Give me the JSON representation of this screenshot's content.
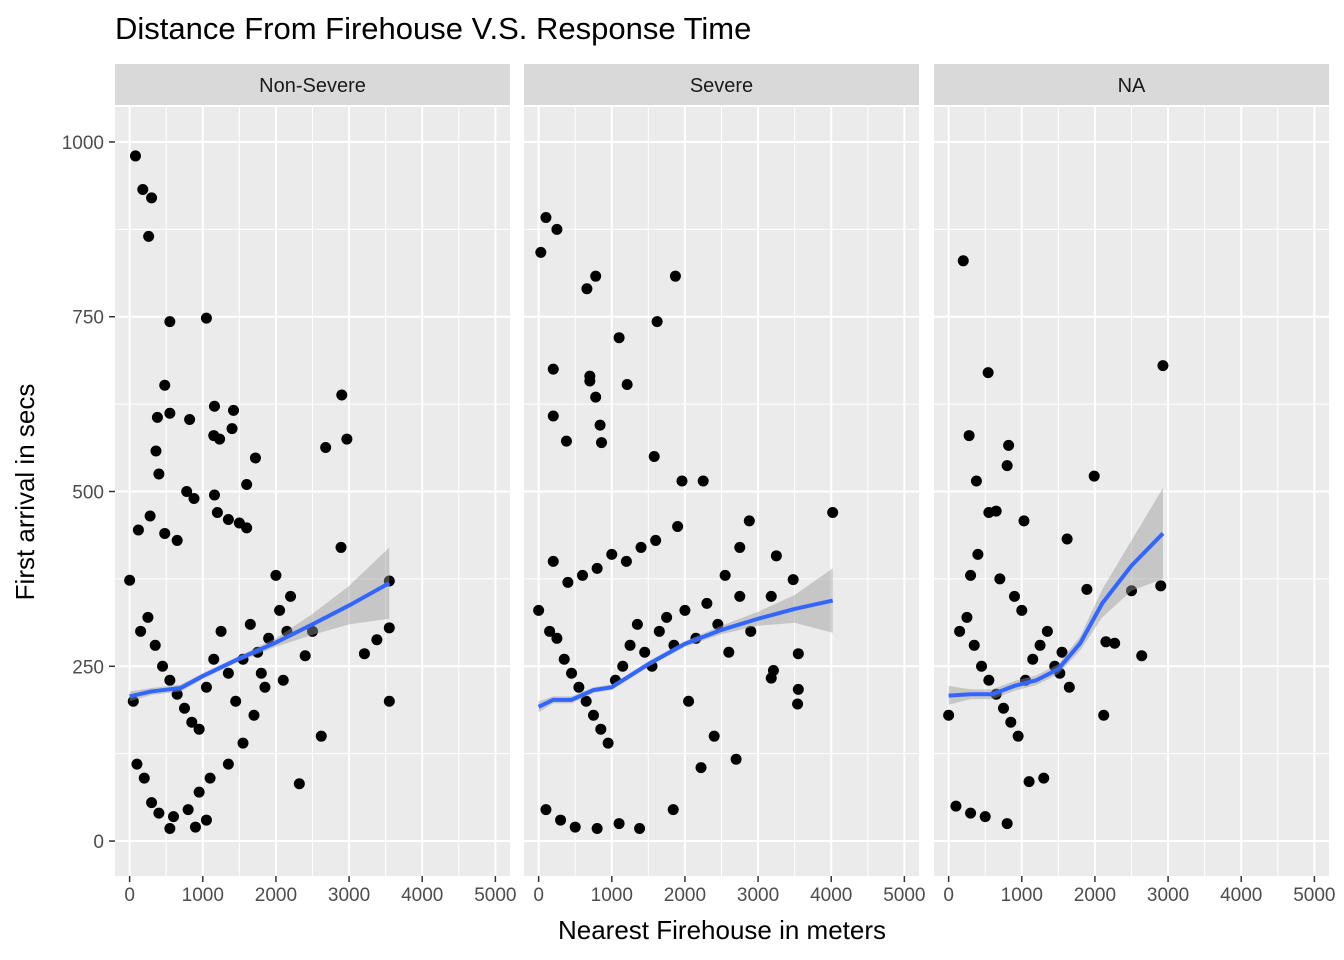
{
  "chart_data": {
    "type": "scatter",
    "title": "Distance From Firehouse V.S. Response Time",
    "xlabel": "Nearest Firehouse in meters",
    "ylabel": "First arrival in secs",
    "xlim": [
      -200,
      5200
    ],
    "ylim": [
      -50,
      1050
    ],
    "x_ticks": [
      0,
      1000,
      2000,
      3000,
      4000,
      5000
    ],
    "x_tick_labels": [
      "0",
      "1000",
      "2000",
      "3000",
      "4000",
      "5000"
    ],
    "y_ticks": [
      0,
      250,
      500,
      750,
      1000
    ],
    "y_tick_labels": [
      "0",
      "250",
      "500",
      "750",
      "1000"
    ],
    "grid": true,
    "colors": {
      "panel_bg": "#ebebeb",
      "strip_bg": "#d9d9d9",
      "grid": "#ffffff",
      "point": "#000000",
      "smooth_line": "#3366ff",
      "ribbon": "#999999"
    },
    "panels": [
      {
        "label": "Non-Severe",
        "points": [
          [
            80,
            980
          ],
          [
            180,
            932
          ],
          [
            300,
            920
          ],
          [
            260,
            865
          ],
          [
            550,
            743
          ],
          [
            1050,
            748
          ],
          [
            480,
            652
          ],
          [
            1160,
            622
          ],
          [
            1420,
            616
          ],
          [
            550,
            612
          ],
          [
            380,
            606
          ],
          [
            820,
            603
          ],
          [
            1400,
            590
          ],
          [
            1150,
            580
          ],
          [
            1230,
            575
          ],
          [
            360,
            558
          ],
          [
            1720,
            548
          ],
          [
            400,
            525
          ],
          [
            1600,
            510
          ],
          [
            780,
            500
          ],
          [
            1160,
            495
          ],
          [
            880,
            490
          ],
          [
            280,
            465
          ],
          [
            1200,
            470
          ],
          [
            1350,
            460
          ],
          [
            1500,
            455
          ],
          [
            1600,
            448
          ],
          [
            120,
            445
          ],
          [
            480,
            440
          ],
          [
            650,
            430
          ],
          [
            2900,
            638
          ],
          [
            2970,
            575
          ],
          [
            2680,
            563
          ],
          [
            2890,
            420
          ],
          [
            3550,
            372
          ],
          [
            3550,
            305
          ],
          [
            3380,
            288
          ],
          [
            3210,
            268
          ],
          [
            3550,
            200
          ],
          [
            2620,
            150
          ],
          [
            2320,
            82
          ],
          [
            2500,
            300
          ],
          [
            2200,
            350
          ],
          [
            2050,
            330
          ],
          [
            1900,
            290
          ],
          [
            2400,
            265
          ],
          [
            1800,
            240
          ],
          [
            2100,
            230
          ],
          [
            1700,
            180
          ],
          [
            1550,
            140
          ],
          [
            1350,
            110
          ],
          [
            1100,
            90
          ],
          [
            950,
            70
          ],
          [
            800,
            45
          ],
          [
            600,
            35
          ],
          [
            550,
            18
          ],
          [
            900,
            20
          ],
          [
            1050,
            30
          ],
          [
            400,
            40
          ],
          [
            300,
            55
          ],
          [
            200,
            90
          ],
          [
            100,
            110
          ],
          [
            50,
            200
          ],
          [
            0,
            373
          ],
          [
            150,
            300
          ],
          [
            250,
            320
          ],
          [
            350,
            280
          ],
          [
            450,
            250
          ],
          [
            550,
            230
          ],
          [
            650,
            210
          ],
          [
            750,
            190
          ],
          [
            850,
            170
          ],
          [
            950,
            160
          ],
          [
            1050,
            220
          ],
          [
            1150,
            260
          ],
          [
            1250,
            300
          ],
          [
            1350,
            240
          ],
          [
            1450,
            200
          ],
          [
            1550,
            260
          ],
          [
            1650,
            310
          ],
          [
            1750,
            270
          ],
          [
            1850,
            220
          ],
          [
            2000,
            380
          ],
          [
            2150,
            300
          ]
        ],
        "smooth": [
          [
            0,
            207
          ],
          [
            300,
            214
          ],
          [
            700,
            219
          ],
          [
            1000,
            236
          ],
          [
            1500,
            261
          ],
          [
            2000,
            284
          ],
          [
            2500,
            310
          ],
          [
            3000,
            337
          ],
          [
            3550,
            369
          ]
        ],
        "ribbon_upper": [
          [
            0,
            214
          ],
          [
            300,
            219
          ],
          [
            700,
            224
          ],
          [
            1000,
            240
          ],
          [
            1500,
            265
          ],
          [
            2000,
            290
          ],
          [
            2500,
            325
          ],
          [
            3000,
            365
          ],
          [
            3550,
            420
          ]
        ],
        "ribbon_lower": [
          [
            0,
            200
          ],
          [
            300,
            209
          ],
          [
            700,
            214
          ],
          [
            1000,
            232
          ],
          [
            1500,
            257
          ],
          [
            2000,
            278
          ],
          [
            2500,
            295
          ],
          [
            3000,
            310
          ],
          [
            3550,
            318
          ]
        ]
      },
      {
        "label": "Severe",
        "points": [
          [
            100,
            892
          ],
          [
            30,
            842
          ],
          [
            250,
            875
          ],
          [
            660,
            790
          ],
          [
            780,
            808
          ],
          [
            1870,
            808
          ],
          [
            1620,
            743
          ],
          [
            1100,
            720
          ],
          [
            200,
            675
          ],
          [
            700,
            665
          ],
          [
            700,
            658
          ],
          [
            1210,
            653
          ],
          [
            780,
            635
          ],
          [
            200,
            608
          ],
          [
            840,
            595
          ],
          [
            380,
            572
          ],
          [
            860,
            570
          ],
          [
            1580,
            550
          ],
          [
            4020,
            470
          ],
          [
            2880,
            458
          ],
          [
            3250,
            408
          ],
          [
            3480,
            374
          ],
          [
            3180,
            350
          ],
          [
            2750,
            420
          ],
          [
            2550,
            380
          ],
          [
            3550,
            268
          ],
          [
            3210,
            244
          ],
          [
            3550,
            217
          ],
          [
            3540,
            196
          ],
          [
            3180,
            233
          ],
          [
            2700,
            117
          ],
          [
            2220,
            105
          ],
          [
            1840,
            45
          ],
          [
            1380,
            18
          ],
          [
            1100,
            25
          ],
          [
            800,
            18
          ],
          [
            500,
            20
          ],
          [
            300,
            30
          ],
          [
            100,
            45
          ],
          [
            1900,
            450
          ],
          [
            1600,
            430
          ],
          [
            1400,
            420
          ],
          [
            1200,
            400
          ],
          [
            1000,
            410
          ],
          [
            800,
            390
          ],
          [
            600,
            380
          ],
          [
            400,
            370
          ],
          [
            200,
            400
          ],
          [
            0,
            330
          ],
          [
            150,
            300
          ],
          [
            250,
            290
          ],
          [
            350,
            260
          ],
          [
            450,
            240
          ],
          [
            550,
            220
          ],
          [
            650,
            200
          ],
          [
            750,
            180
          ],
          [
            850,
            160
          ],
          [
            950,
            140
          ],
          [
            1050,
            230
          ],
          [
            1150,
            250
          ],
          [
            1250,
            280
          ],
          [
            1350,
            310
          ],
          [
            1450,
            270
          ],
          [
            1550,
            250
          ],
          [
            1650,
            300
          ],
          [
            1750,
            320
          ],
          [
            1850,
            280
          ],
          [
            2000,
            330
          ],
          [
            2150,
            290
          ],
          [
            2300,
            340
          ],
          [
            2450,
            310
          ],
          [
            2600,
            270
          ],
          [
            2750,
            350
          ],
          [
            2900,
            300
          ],
          [
            2250,
            515
          ],
          [
            1960,
            515
          ],
          [
            2050,
            200
          ],
          [
            2400,
            150
          ]
        ],
        "smooth": [
          [
            0,
            192
          ],
          [
            200,
            202
          ],
          [
            450,
            202
          ],
          [
            750,
            216
          ],
          [
            1000,
            220
          ],
          [
            1500,
            253
          ],
          [
            2000,
            282
          ],
          [
            2500,
            302
          ],
          [
            3000,
            318
          ],
          [
            3500,
            332
          ],
          [
            4020,
            344
          ]
        ],
        "ribbon_upper": [
          [
            0,
            200
          ],
          [
            200,
            207
          ],
          [
            450,
            207
          ],
          [
            750,
            220
          ],
          [
            1000,
            224
          ],
          [
            1500,
            257
          ],
          [
            2000,
            286
          ],
          [
            2500,
            308
          ],
          [
            3000,
            328
          ],
          [
            3500,
            352
          ],
          [
            4020,
            390
          ]
        ],
        "ribbon_lower": [
          [
            0,
            184
          ],
          [
            200,
            197
          ],
          [
            450,
            197
          ],
          [
            750,
            212
          ],
          [
            1000,
            216
          ],
          [
            1500,
            249
          ],
          [
            2000,
            278
          ],
          [
            2500,
            296
          ],
          [
            3000,
            308
          ],
          [
            3500,
            312
          ],
          [
            4020,
            298
          ]
        ]
      },
      {
        "label": "NA",
        "points": [
          [
            200,
            830
          ],
          [
            540,
            670
          ],
          [
            2930,
            680
          ],
          [
            280,
            580
          ],
          [
            820,
            566
          ],
          [
            800,
            537
          ],
          [
            380,
            515
          ],
          [
            1990,
            522
          ],
          [
            1030,
            458
          ],
          [
            650,
            472
          ],
          [
            550,
            470
          ],
          [
            1620,
            432
          ],
          [
            1890,
            360
          ],
          [
            2500,
            358
          ],
          [
            2900,
            365
          ],
          [
            2150,
            285
          ],
          [
            2270,
            283
          ],
          [
            1520,
            240
          ],
          [
            2640,
            265
          ],
          [
            2120,
            180
          ],
          [
            1300,
            90
          ],
          [
            1100,
            85
          ],
          [
            800,
            25
          ],
          [
            500,
            35
          ],
          [
            300,
            40
          ],
          [
            100,
            50
          ],
          [
            0,
            180
          ],
          [
            150,
            300
          ],
          [
            250,
            320
          ],
          [
            350,
            280
          ],
          [
            450,
            250
          ],
          [
            550,
            230
          ],
          [
            650,
            210
          ],
          [
            750,
            190
          ],
          [
            850,
            170
          ],
          [
            950,
            150
          ],
          [
            1050,
            230
          ],
          [
            1150,
            260
          ],
          [
            1250,
            280
          ],
          [
            1350,
            300
          ],
          [
            1450,
            250
          ],
          [
            1550,
            270
          ],
          [
            1650,
            220
          ],
          [
            400,
            410
          ],
          [
            300,
            380
          ],
          [
            700,
            375
          ],
          [
            900,
            350
          ],
          [
            1000,
            330
          ]
        ],
        "smooth": [
          [
            0,
            208
          ],
          [
            300,
            210
          ],
          [
            600,
            210
          ],
          [
            900,
            222
          ],
          [
            1200,
            230
          ],
          [
            1500,
            246
          ],
          [
            1800,
            283
          ],
          [
            2100,
            340
          ],
          [
            2500,
            394
          ],
          [
            2930,
            440
          ]
        ],
        "ribbon_upper": [
          [
            0,
            222
          ],
          [
            300,
            217
          ],
          [
            600,
            217
          ],
          [
            900,
            229
          ],
          [
            1200,
            237
          ],
          [
            1500,
            253
          ],
          [
            1800,
            293
          ],
          [
            2100,
            360
          ],
          [
            2500,
            430
          ],
          [
            2930,
            505
          ]
        ],
        "ribbon_lower": [
          [
            0,
            195
          ],
          [
            300,
            203
          ],
          [
            600,
            203
          ],
          [
            900,
            215
          ],
          [
            1200,
            223
          ],
          [
            1500,
            239
          ],
          [
            1800,
            273
          ],
          [
            2100,
            320
          ],
          [
            2500,
            358
          ],
          [
            2930,
            375
          ]
        ]
      }
    ]
  }
}
